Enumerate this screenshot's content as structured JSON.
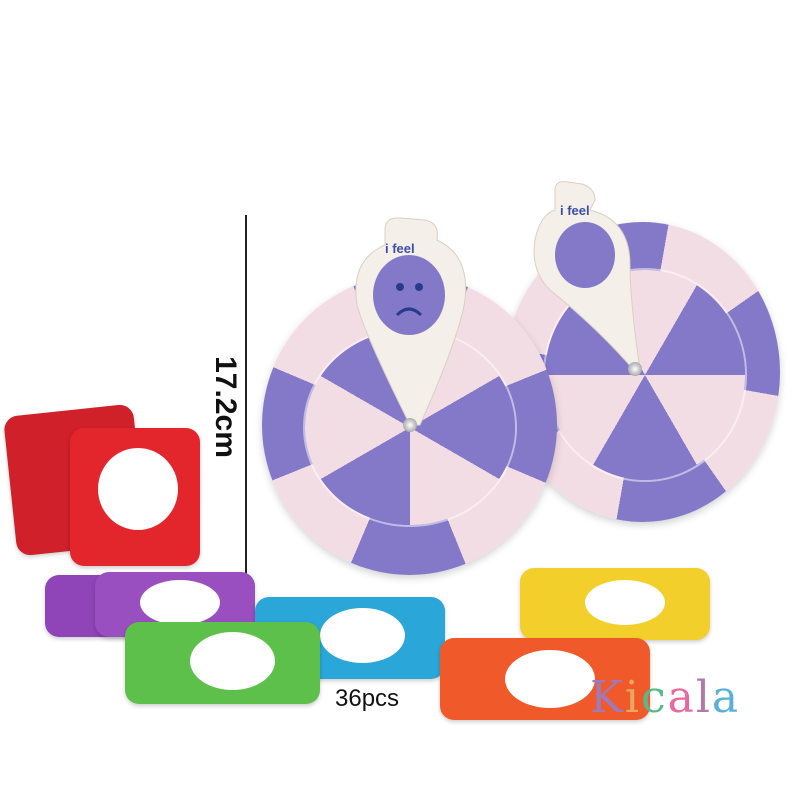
{
  "dimension_label": "17.2cm",
  "quantity_label": "36pcs",
  "pointer_label": "i feel",
  "logo": {
    "text": "Kicala",
    "letter_colors": [
      "#a07ab8",
      "#e8a860",
      "#58b88a",
      "#e66aa0",
      "#b07aa8",
      "#5ab0d8"
    ]
  },
  "colors": {
    "wheel_pink": "#f3dde4",
    "wheel_purple": "#8479c9",
    "cards": [
      "#e2262c",
      "#9a4fc0",
      "#2aa6d8",
      "#5cc04a",
      "#f2cf2a",
      "#f05a2a"
    ]
  }
}
